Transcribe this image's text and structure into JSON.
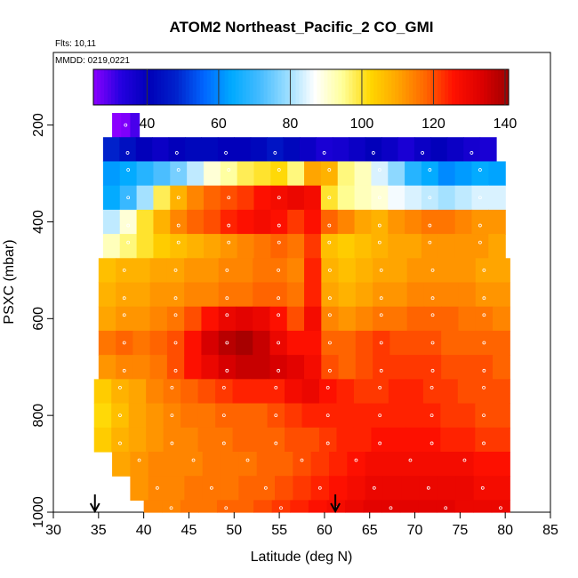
{
  "chart_data": {
    "type": "heatmap",
    "title": "ATOM2 Northeast_Pacific_2 CO_GMI",
    "annotations": [
      "Flts: 10,11",
      "MMDD: 0219,0221"
    ],
    "xlabel": "Latitude (deg N)",
    "ylabel": "PSXC (mbar)",
    "xlim": [
      30,
      85
    ],
    "ylim": [
      1000,
      50
    ],
    "y_reversed": true,
    "x_ticks": [
      "30",
      "35",
      "40",
      "45",
      "50",
      "55",
      "60",
      "65",
      "70",
      "75",
      "80",
      "85"
    ],
    "y_ticks": [
      "200",
      "400",
      "600",
      "800",
      "1000"
    ],
    "colorbar": {
      "range": [
        25,
        141
      ],
      "ticks": [
        "40",
        "60",
        "80",
        "100",
        "120",
        "140"
      ],
      "colors": [
        "#8b00ff",
        "#2400e0",
        "#0000b8",
        "#0022cc",
        "#0066ff",
        "#00aaff",
        "#44bbff",
        "#99ddff",
        "#ffffff",
        "#ffff99",
        "#ffd700",
        "#ffa500",
        "#ff6600",
        "#ff1100",
        "#dd0000",
        "#a00000"
      ]
    },
    "arrows_at_latitude": [
      34.6,
      61.2
    ],
    "levels": [
      {
        "p": 200,
        "lat": [
          36.5,
          39.5
        ],
        "values": [
          25,
          26,
          30
        ]
      },
      {
        "p": 250,
        "lat": [
          35.5,
          79.0
        ],
        "values": [
          48,
          44,
          40,
          38,
          40,
          42,
          42,
          40,
          40,
          42,
          45,
          42,
          38,
          35,
          36,
          38,
          40,
          38,
          35,
          38,
          40,
          38,
          36,
          35
        ]
      },
      {
        "p": 300,
        "lat": [
          35.5,
          80.0
        ],
        "values": [
          62,
          64,
          68,
          72,
          76,
          82,
          90,
          94,
          98,
          100,
          102,
          96,
          110,
          108,
          96,
          92,
          84,
          78,
          68,
          64,
          60,
          62,
          64,
          63
        ]
      },
      {
        "p": 350,
        "lat": [
          35.5,
          80.0
        ],
        "values": [
          64,
          70,
          80,
          98,
          108,
          114,
          118,
          120,
          122,
          126,
          128,
          130,
          128,
          100,
          95,
          92,
          90,
          86,
          84,
          82,
          80,
          82,
          84,
          84
        ]
      },
      {
        "p": 400,
        "lat": [
          35.5,
          80.0
        ],
        "values": [
          82,
          90,
          100,
          108,
          114,
          118,
          120,
          124,
          126,
          128,
          126,
          122,
          126,
          118,
          114,
          110,
          108,
          112,
          114,
          116,
          116,
          114,
          112,
          112
        ]
      },
      {
        "p": 450,
        "lat": [
          35.5,
          80.0
        ],
        "values": [
          92,
          96,
          100,
          104,
          106,
          108,
          110,
          112,
          114,
          116,
          118,
          116,
          122,
          106,
          104,
          106,
          108,
          110,
          110,
          112,
          112,
          112,
          112,
          110
        ]
      },
      {
        "p": 500,
        "lat": [
          35.0,
          80.5
        ],
        "values": [
          106,
          108,
          108,
          110,
          110,
          112,
          112,
          114,
          114,
          116,
          116,
          114,
          124,
          108,
          106,
          108,
          110,
          110,
          112,
          112,
          112,
          112,
          110,
          110
        ]
      },
      {
        "p": 550,
        "lat": [
          35.0,
          80.5
        ],
        "values": [
          108,
          110,
          110,
          112,
          112,
          114,
          114,
          116,
          116,
          118,
          118,
          116,
          124,
          110,
          108,
          110,
          112,
          112,
          114,
          114,
          114,
          114,
          112,
          112
        ]
      },
      {
        "p": 600,
        "lat": [
          35.0,
          80.5
        ],
        "values": [
          110,
          112,
          112,
          114,
          116,
          120,
          126,
          130,
          132,
          130,
          126,
          120,
          128,
          114,
          112,
          114,
          116,
          116,
          118,
          118,
          118,
          116,
          116,
          114
        ]
      },
      {
        "p": 650,
        "lat": [
          35.0,
          80.5
        ],
        "values": [
          116,
          118,
          116,
          118,
          120,
          126,
          134,
          138,
          140,
          136,
          130,
          126,
          126,
          118,
          118,
          120,
          122,
          120,
          120,
          120,
          118,
          118,
          118,
          118
        ]
      },
      {
        "p": 700,
        "lat": [
          35.0,
          80.5
        ],
        "values": [
          112,
          114,
          114,
          116,
          120,
          126,
          130,
          134,
          136,
          136,
          134,
          132,
          128,
          120,
          118,
          120,
          122,
          122,
          122,
          122,
          120,
          120,
          120,
          118
        ]
      },
      {
        "p": 750,
        "lat": [
          34.5,
          80.5
        ],
        "values": [
          104,
          108,
          110,
          114,
          116,
          118,
          120,
          122,
          124,
          124,
          124,
          128,
          130,
          126,
          124,
          122,
          122,
          124,
          124,
          122,
          122,
          120,
          120,
          120
        ]
      },
      {
        "p": 800,
        "lat": [
          34.5,
          80.5
        ],
        "values": [
          102,
          106,
          110,
          112,
          114,
          116,
          116,
          118,
          118,
          118,
          120,
          122,
          124,
          124,
          124,
          124,
          124,
          124,
          124,
          124,
          122,
          122,
          120,
          120
        ]
      },
      {
        "p": 850,
        "lat": [
          34.5,
          80.5
        ],
        "values": [
          104,
          108,
          110,
          112,
          114,
          114,
          116,
          116,
          118,
          118,
          118,
          120,
          120,
          122,
          124,
          124,
          126,
          126,
          126,
          126,
          124,
          124,
          122,
          122
        ]
      },
      {
        "p": 900,
        "lat": [
          36.5,
          80.5
        ],
        "values": [
          110,
          112,
          114,
          114,
          114,
          116,
          116,
          116,
          118,
          118,
          120,
          122,
          124,
          126,
          128,
          128,
          128,
          128,
          128,
          128,
          126,
          126
        ]
      },
      {
        "p": 950,
        "lat": [
          38.5,
          80.5
        ],
        "values": [
          112,
          114,
          114,
          116,
          116,
          116,
          118,
          118,
          120,
          122,
          124,
          126,
          128,
          130,
          130,
          130,
          130,
          130,
          130,
          128,
          128
        ]
      },
      {
        "p": 1000,
        "lat": [
          40.0,
          80.5
        ],
        "values": [
          114,
          114,
          116,
          116,
          118,
          118,
          120,
          122,
          124,
          126,
          128,
          130,
          132,
          132,
          132,
          132,
          132,
          130,
          130,
          130
        ]
      }
    ]
  }
}
